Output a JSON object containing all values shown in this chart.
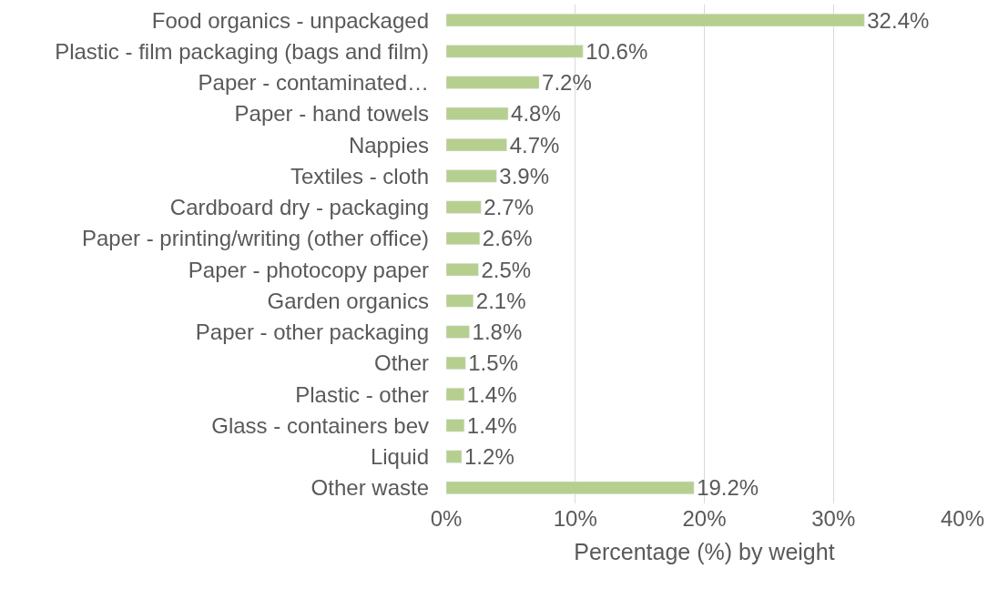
{
  "chart_data": {
    "type": "bar",
    "orientation": "horizontal",
    "xlabel": "Percentage (%) by weight",
    "categories": [
      "Food organics - unpackaged",
      "Plastic - film packaging (bags and film)",
      "Paper - contaminated…",
      "Paper - hand towels",
      "Nappies",
      "Textiles - cloth",
      "Cardboard dry - packaging",
      "Paper - printing/writing (other office)",
      "Paper - photocopy paper",
      "Garden organics",
      "Paper - other packaging",
      "Other",
      "Plastic - other",
      "Glass - containers bev",
      "Liquid",
      "Other waste"
    ],
    "values": [
      32.4,
      10.6,
      7.2,
      4.8,
      4.7,
      3.9,
      2.7,
      2.6,
      2.5,
      2.1,
      1.8,
      1.5,
      1.4,
      1.4,
      1.2,
      19.2
    ],
    "value_labels": [
      "32.4%",
      "10.6%",
      "7.2%",
      "4.8%",
      "4.7%",
      "3.9%",
      "2.7%",
      "2.6%",
      "2.5%",
      "2.1%",
      "1.8%",
      "1.5%",
      "1.4%",
      "1.4%",
      "1.2%",
      "19.2%"
    ],
    "color": "#b6cf8f",
    "xlim": [
      0,
      40
    ],
    "xticks": [
      {
        "value": 0,
        "label": "0%"
      },
      {
        "value": 10,
        "label": "10%"
      },
      {
        "value": 20,
        "label": "20%"
      },
      {
        "value": 30,
        "label": "30%"
      },
      {
        "value": 40,
        "label": "40%"
      }
    ],
    "grid": "x"
  }
}
